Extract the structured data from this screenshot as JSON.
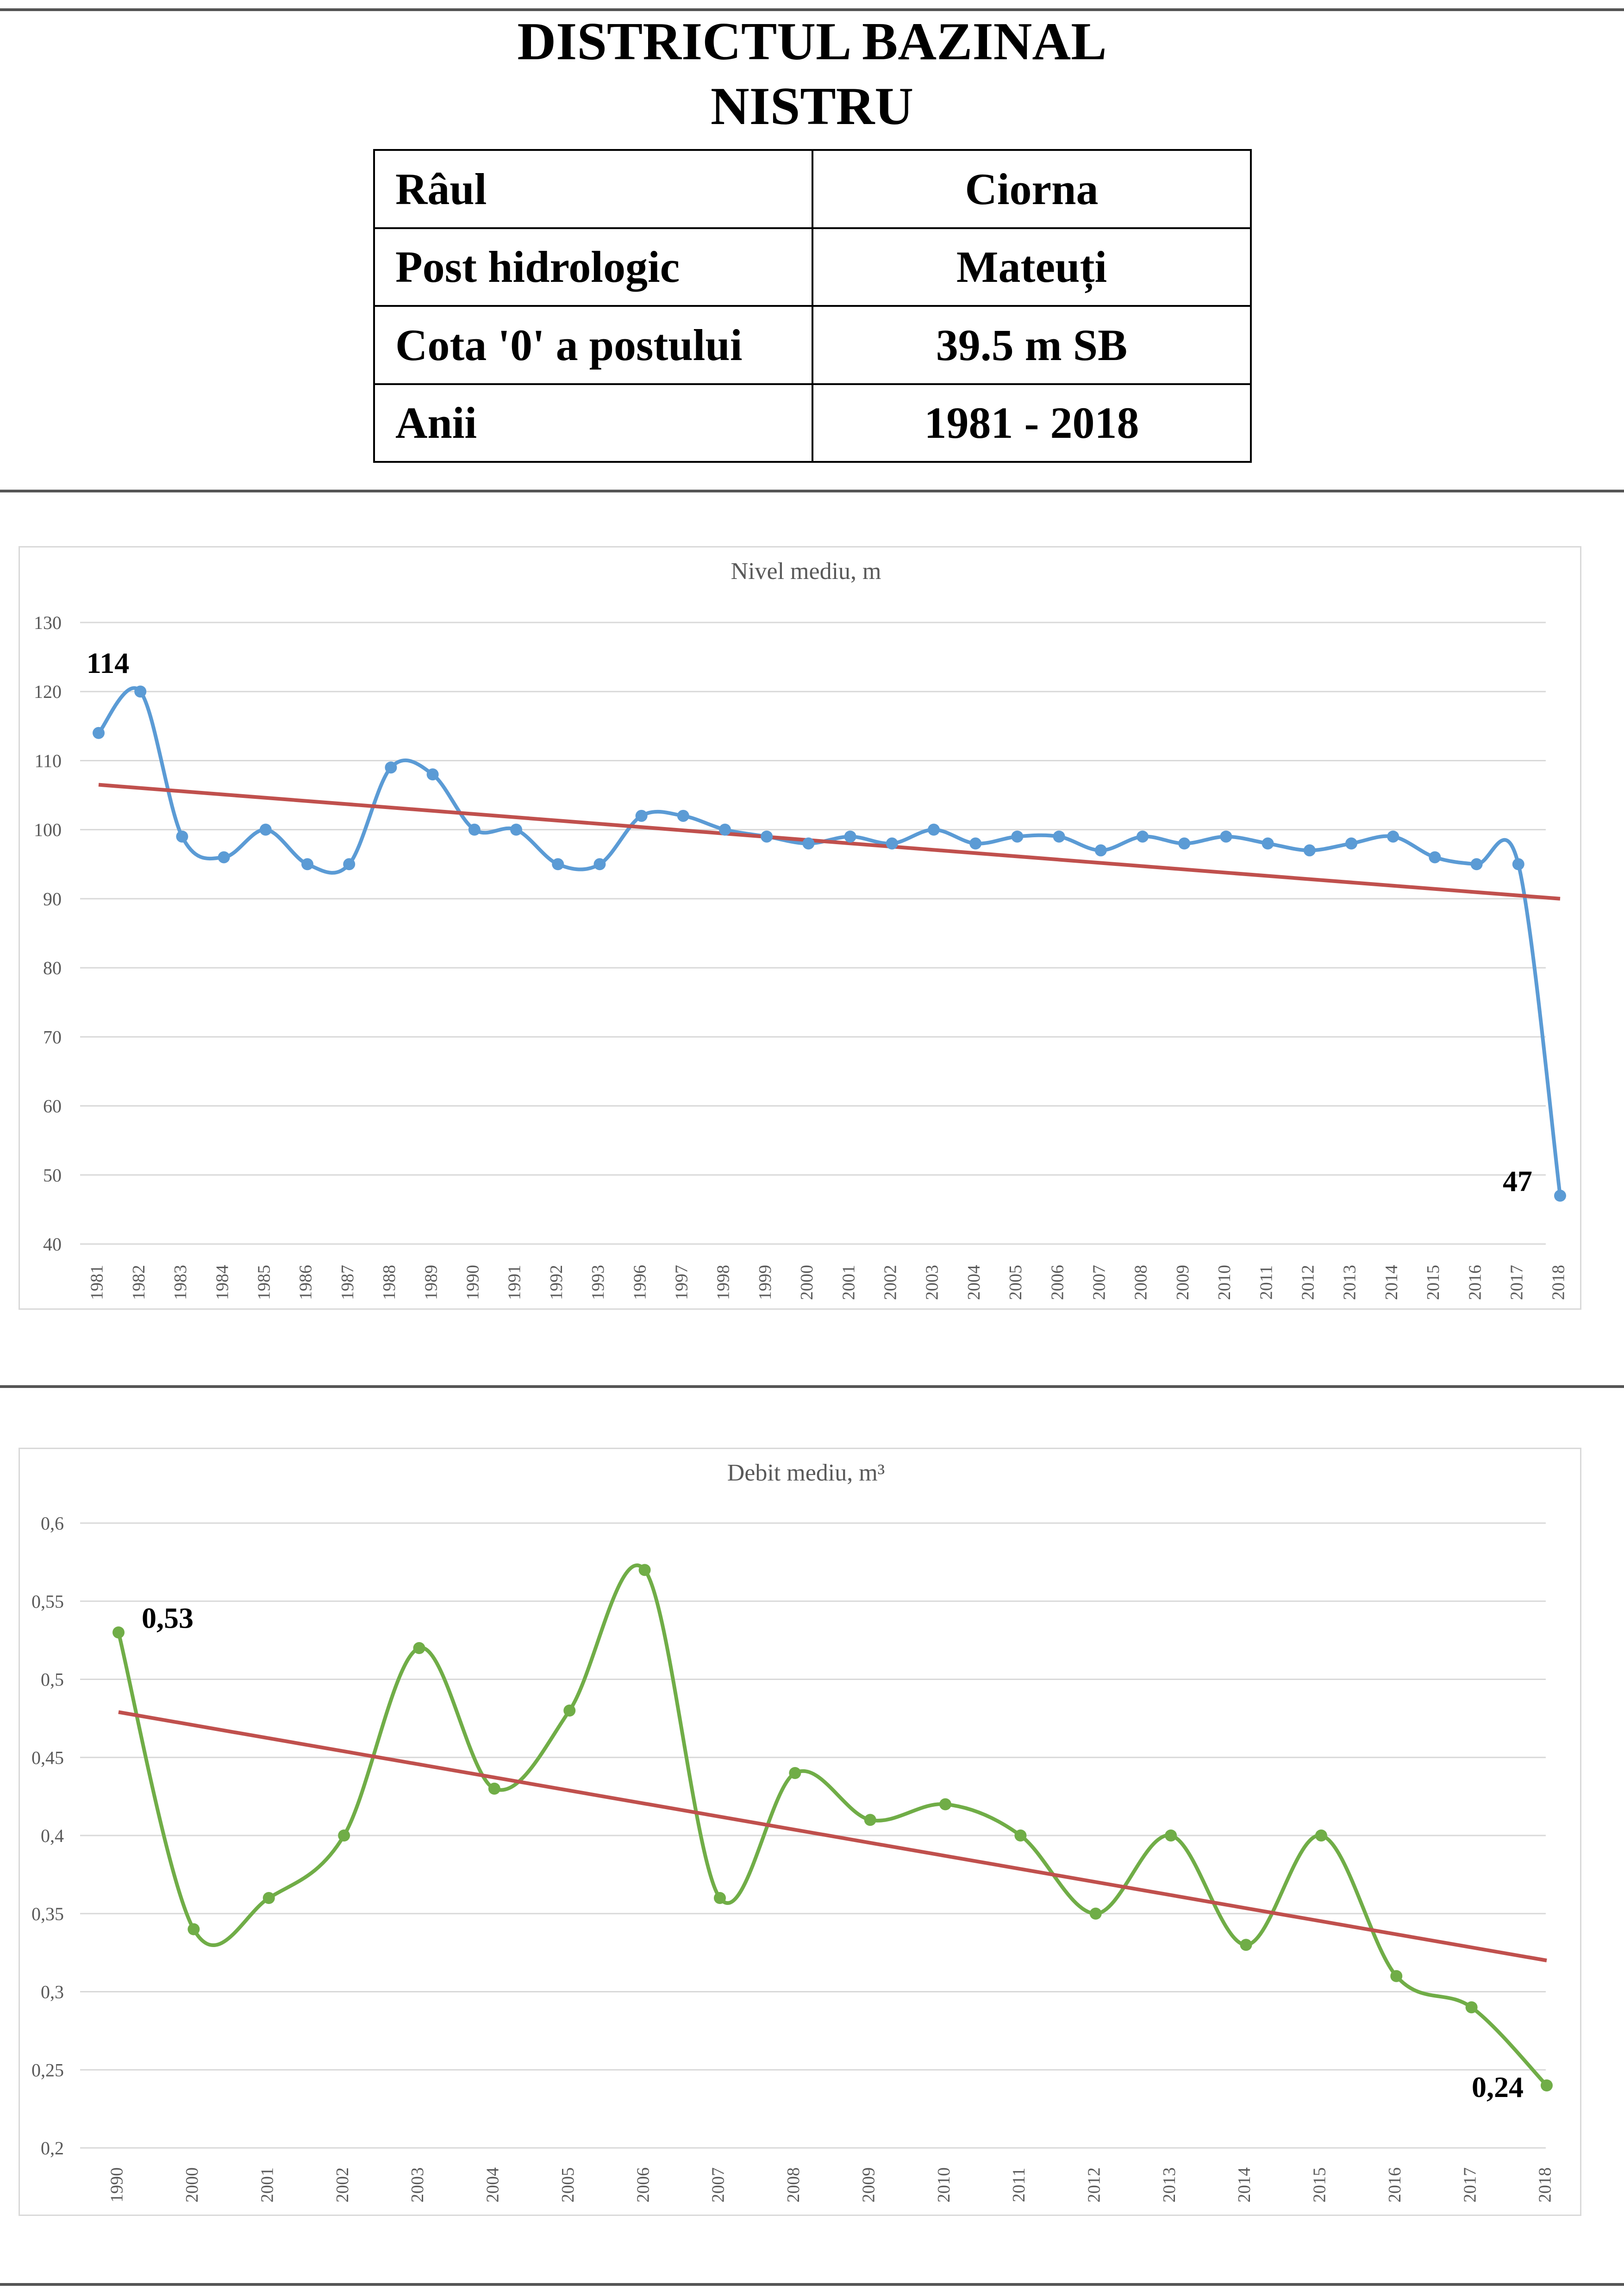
{
  "header": {
    "title_line1": "DISTRICTUL BAZINAL",
    "title_line2": "NISTRU"
  },
  "info_table": [
    {
      "label": "Râul",
      "value": "Ciorna"
    },
    {
      "label": "Post hidrologic",
      "value": "Mateuți"
    },
    {
      "label": "Cota '0' a postului",
      "value": "39.5 m SB"
    },
    {
      "label": "Anii",
      "value": "1981 - 2018"
    }
  ],
  "colors": {
    "level_series": "#5b9bd5",
    "flow_series": "#70ad47",
    "trend": "#c0504d",
    "grid": "#d9d9d9",
    "axis_text": "#595959"
  },
  "chart_data": [
    {
      "type": "line",
      "title": "Nivel mediu, m",
      "categories": [
        "1981",
        "1982",
        "1983",
        "1984",
        "1985",
        "1986",
        "1987",
        "1988",
        "1989",
        "1990",
        "1991",
        "1992",
        "1993",
        "1996",
        "1997",
        "1998",
        "1999",
        "2000",
        "2001",
        "2002",
        "2003",
        "2004",
        "2005",
        "2006",
        "2007",
        "2008",
        "2009",
        "2010",
        "2011",
        "2012",
        "2013",
        "2014",
        "2015",
        "2016",
        "2017",
        "2018"
      ],
      "values": [
        114,
        120,
        99,
        96,
        100,
        95,
        95,
        109,
        108,
        100,
        100,
        95,
        95,
        102,
        102,
        100,
        99,
        98,
        99,
        98,
        100,
        98,
        99,
        99,
        97,
        99,
        98,
        99,
        98,
        97,
        98,
        99,
        96,
        95,
        95,
        47
      ],
      "trend": {
        "start": 106.5,
        "end": 90
      },
      "ylim": [
        40,
        130
      ],
      "yticks": [
        "40",
        "50",
        "60",
        "70",
        "80",
        "90",
        "100",
        "110",
        "120",
        "130"
      ],
      "point_labels": [
        {
          "index": 0,
          "text": "114"
        },
        {
          "index": 35,
          "text": "47"
        }
      ],
      "grid": true,
      "legend": "none"
    },
    {
      "type": "line",
      "title": "Debit mediu, m³",
      "categories": [
        "1990",
        "2000",
        "2001",
        "2002",
        "2003",
        "2004",
        "2005",
        "2006",
        "2007",
        "2008",
        "2009",
        "2010",
        "2011",
        "2012",
        "2013",
        "2014",
        "2015",
        "2016",
        "2017",
        "2018"
      ],
      "values": [
        0.53,
        0.34,
        0.36,
        0.4,
        0.52,
        0.43,
        0.48,
        0.57,
        0.36,
        0.44,
        0.41,
        0.42,
        0.4,
        0.35,
        0.4,
        0.33,
        0.4,
        0.31,
        0.29,
        0.24
      ],
      "trend": {
        "start": 0.479,
        "end": 0.32
      },
      "ylim": [
        0.2,
        0.6
      ],
      "yticks": [
        "0,2",
        "0,25",
        "0,3",
        "0,35",
        "0,4",
        "0,45",
        "0,5",
        "0,55",
        "0,6"
      ],
      "point_labels": [
        {
          "index": 0,
          "text": "0,53"
        },
        {
          "index": 19,
          "text": "0,24"
        }
      ],
      "grid": true,
      "legend": "none"
    }
  ]
}
